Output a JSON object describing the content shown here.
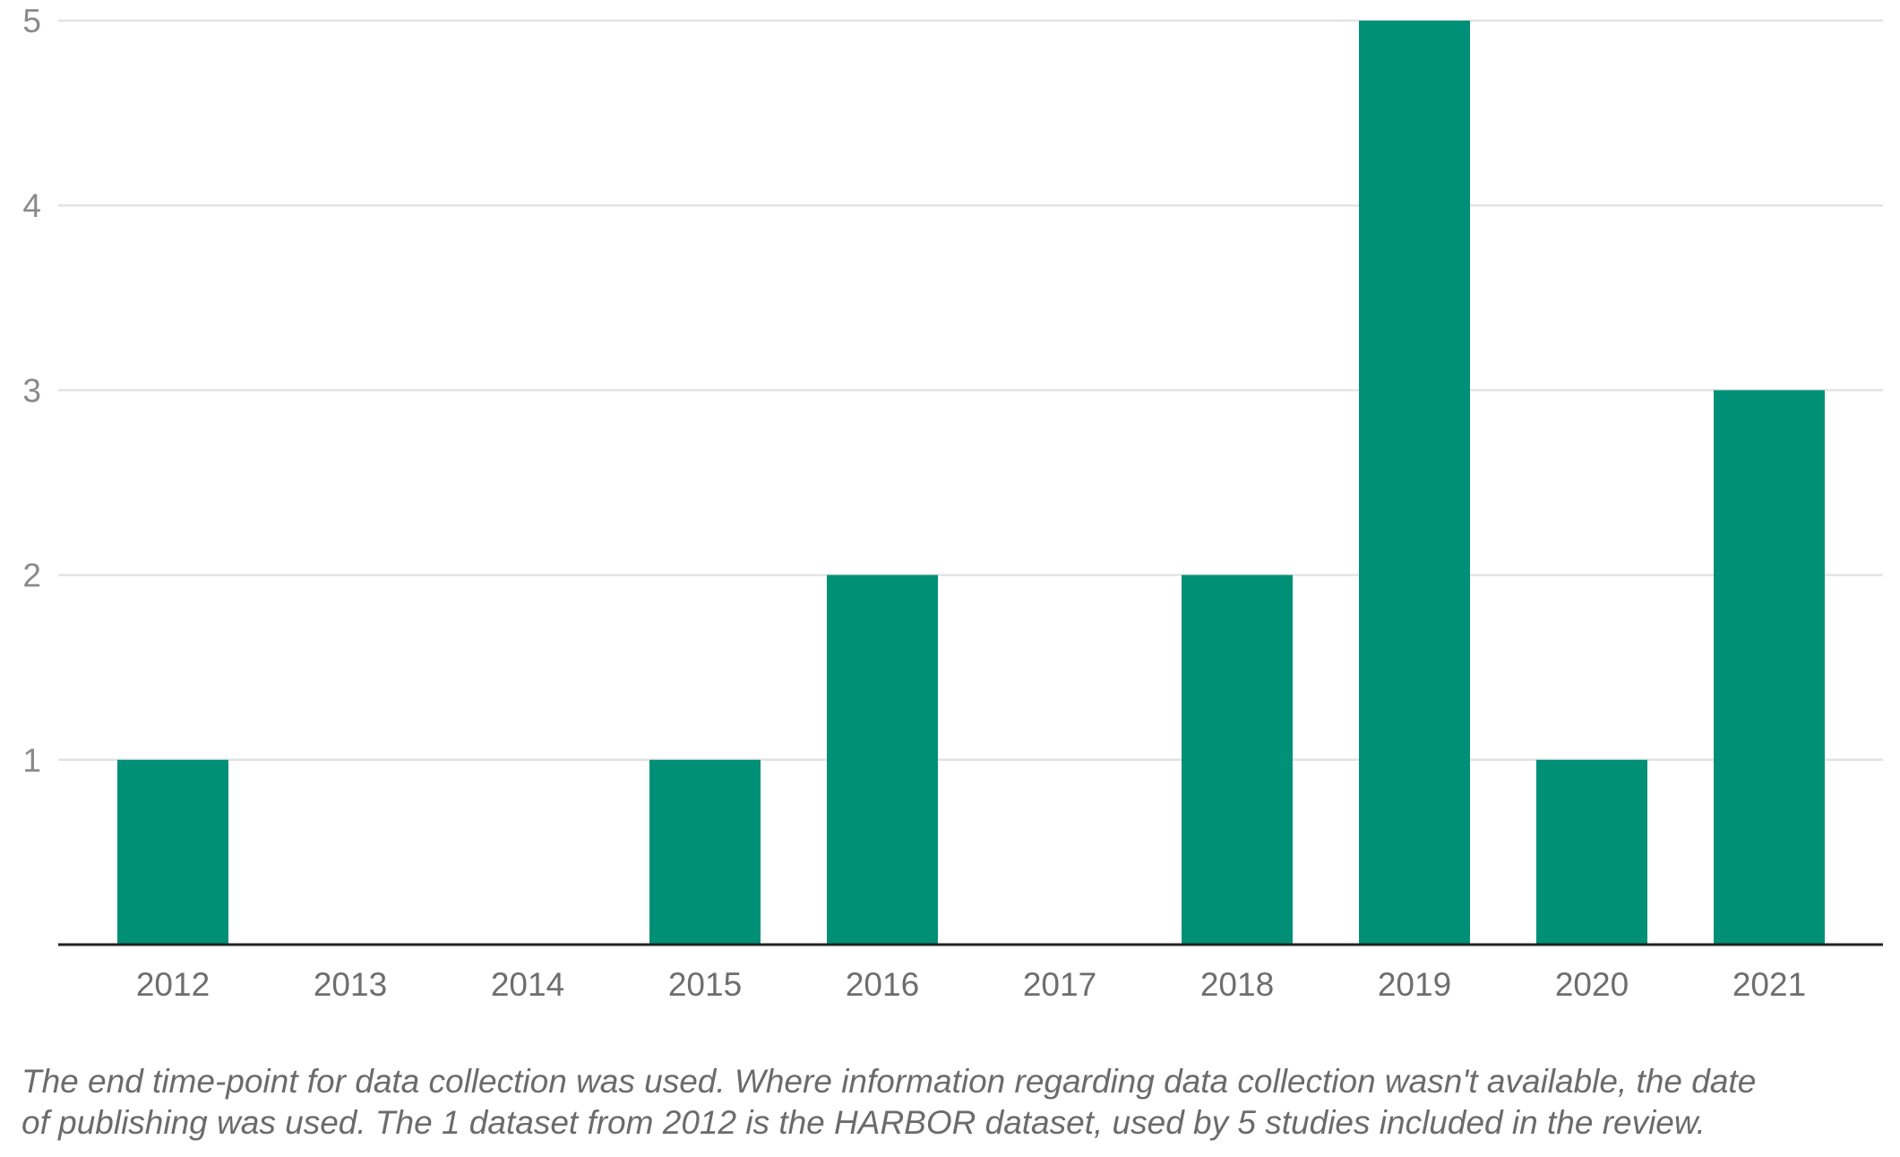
{
  "chart_data": {
    "type": "bar",
    "categories": [
      "2012",
      "2013",
      "2014",
      "2015",
      "2016",
      "2017",
      "2018",
      "2019",
      "2020",
      "2021"
    ],
    "values": [
      1,
      0,
      0,
      1,
      2,
      0,
      2,
      5,
      1,
      3
    ],
    "ylim": [
      0,
      5
    ],
    "y_ticks": [
      "1",
      "2",
      "3",
      "4",
      "5"
    ],
    "grid": true,
    "legend": "none",
    "title": "",
    "xlabel": "",
    "ylabel": "",
    "colors": {
      "bar": "#009077",
      "gridline": "#e3e3e3",
      "baseline": "#222222"
    }
  },
  "caption": {
    "line1": "The end time-point for data collection was used. Where information regarding data collection wasn't available, the date",
    "line2": "of publishing was used. The 1 dataset from 2012 is the HARBOR dataset, used by 5 studies included in the review."
  }
}
